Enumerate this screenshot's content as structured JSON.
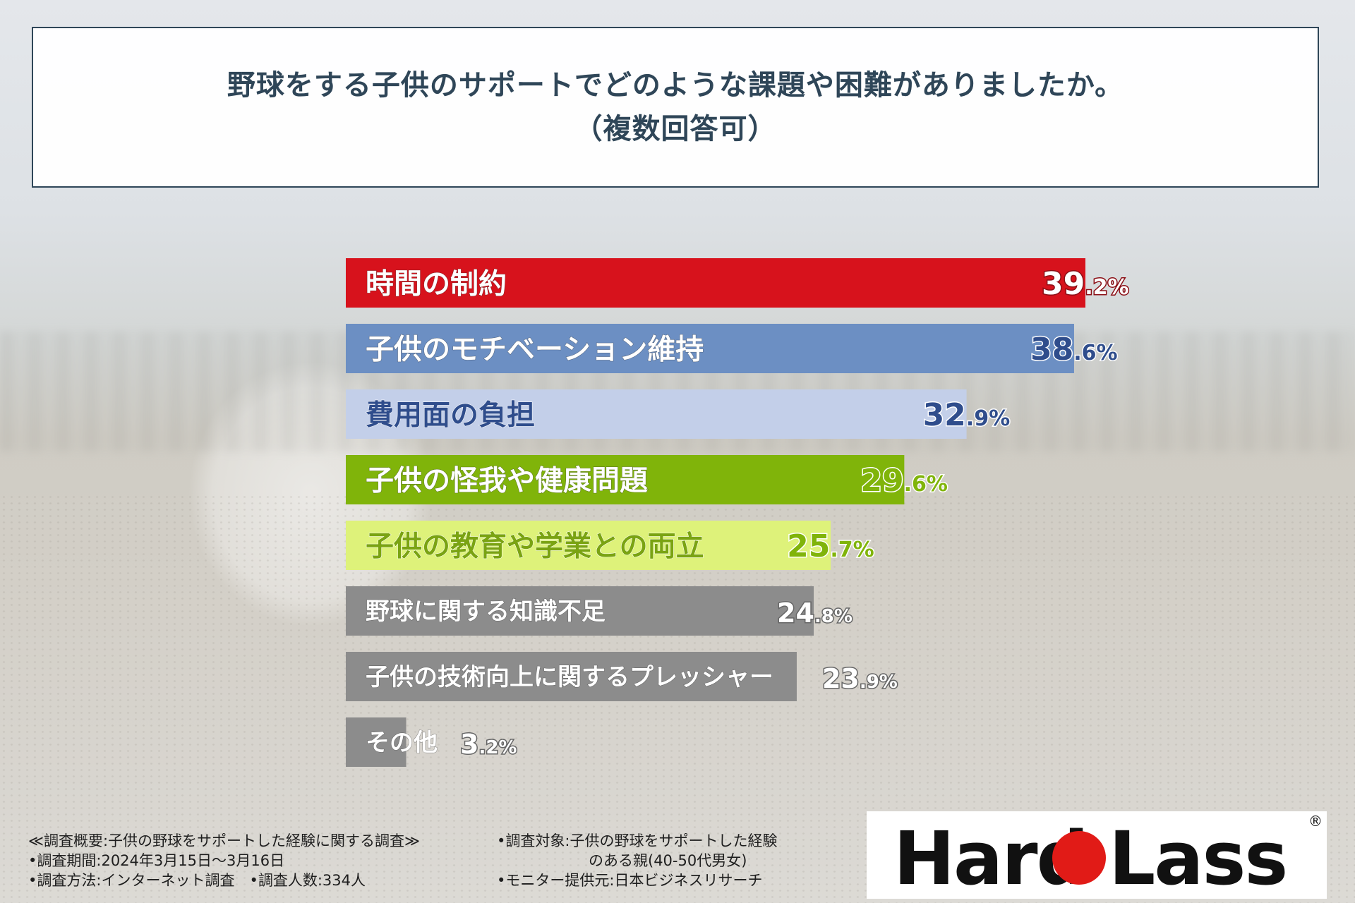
{
  "title": {
    "line1": "野球をする子供のサポートでどのような課題や困難がありましたか。",
    "line2": "（複数回答可）"
  },
  "chart_data": {
    "type": "bar",
    "orientation": "horizontal",
    "categories": [
      "時間の制約",
      "子供のモチベーション維持",
      "費用面の負担",
      "子供の怪我や健康問題",
      "子供の教育や学業との両立",
      "野球に関する知識不足",
      "子供の技術向上に関するプレッシャー",
      "その他"
    ],
    "values": [
      39.2,
      38.6,
      32.9,
      29.6,
      25.7,
      24.8,
      23.9,
      3.2
    ],
    "value_labels": [
      "39.2%",
      "38.6%",
      "32.9%",
      "29.6%",
      "25.7%",
      "24.8%",
      "23.9%",
      "3.2%"
    ],
    "colors": [
      "#d7121c",
      "#6c8fc3",
      "#c3cfe9",
      "#80b40a",
      "#def27a",
      "#8c8c8c",
      "#8c8c8c",
      "#8c8c8c"
    ],
    "label_colors": [
      "#ffffff",
      "#ffffff",
      "#2f4d8c",
      "#ffffff",
      "#7aa312",
      "#ffffff",
      "#ffffff",
      "#ffffff"
    ],
    "value_colors": [
      "#ffffff",
      "#2f4d8c",
      "#2f4d8c",
      "#80b40a",
      "#80b40a",
      "#ffffff",
      "#ffffff",
      "#ffffff"
    ],
    "value_outline": [
      "#8b0f16",
      "#ffffff",
      "#ffffff",
      "#ffffff",
      "#ffffff",
      "#666666",
      "#666666",
      "#666666"
    ],
    "xlim": [
      0,
      39.2
    ]
  },
  "footer": {
    "survey_name": "≪調査概要:子供の野球をサポートした経験に関する調査≫",
    "period": "•調査期間:2024年3月15日〜3月16日",
    "method_and_count": "•調査方法:インターネット調査　•調査人数:334人",
    "target_line1": "•調査対象:子供の野球をサポートした経験",
    "target_line2": "のある親(40-50代男女)",
    "provider": "•モニター提供元:日本ビジネスリサーチ"
  },
  "logo": {
    "left_text": "Hard",
    "right_text": "Lass",
    "registered": "®",
    "brand_red": "#e11b17"
  }
}
